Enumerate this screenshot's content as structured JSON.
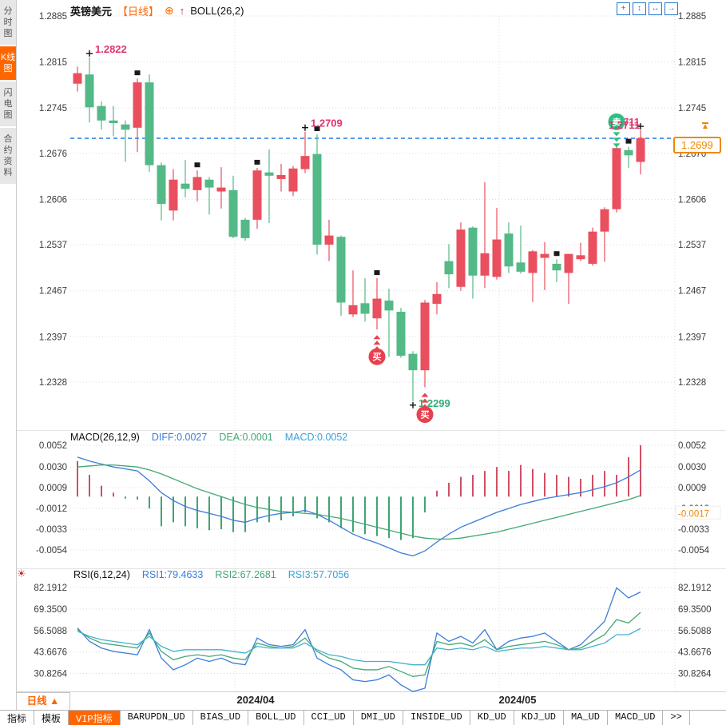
{
  "header": {
    "symbol": "英镑美元",
    "period": "【日线】",
    "boll": "BOLL(26,2)",
    "icons": {
      "add": "⊕",
      "trend_up": "↑"
    }
  },
  "sidebar": {
    "tabs": [
      {
        "label": "分时图",
        "active": false
      },
      {
        "label": "K线图",
        "active": true
      },
      {
        "label": "闪电图",
        "active": false
      },
      {
        "label": "合约资料",
        "active": false
      }
    ]
  },
  "top_icons": [
    {
      "name": "pan-tool-icon",
      "glyph": "+"
    },
    {
      "name": "fit-height-icon",
      "glyph": "↕"
    },
    {
      "name": "fit-width-icon",
      "glyph": "↔"
    },
    {
      "name": "shift-chart-icon",
      "glyph": "→"
    }
  ],
  "price_tag": {
    "value": "1.2699",
    "anchor": "▲"
  },
  "bottom": {
    "period_label": "日线 ▲",
    "x_labels": [
      {
        "text": "2024/04",
        "x": 320
      },
      {
        "text": "2024/05",
        "x": 648
      }
    ],
    "toolbar": [
      {
        "label": "指标",
        "active": false
      },
      {
        "label": "模板",
        "active": false
      },
      {
        "label": "VIP指标",
        "active": true
      },
      {
        "label": "BARUPDN_UD",
        "active": false
      },
      {
        "label": "BIAS_UD",
        "active": false
      },
      {
        "label": "BOLL_UD",
        "active": false
      },
      {
        "label": "CCI_UD",
        "active": false
      },
      {
        "label": "DMI_UD",
        "active": false
      },
      {
        "label": "INSIDE_UD",
        "active": false
      },
      {
        "label": "KD_UD",
        "active": false
      },
      {
        "label": "KDJ_UD",
        "active": false
      },
      {
        "label": "MA_UD",
        "active": false
      },
      {
        "label": "MACD_UD",
        "active": false
      },
      {
        "label": ">>",
        "active": false
      }
    ]
  },
  "colors": {
    "up": "#e94f5e",
    "down": "#53b987",
    "hist_up": "#cf5063",
    "hist_down": "#3fa573",
    "diff_line": "#3b7dd8",
    "dea_line": "#43a874",
    "cyan_line": "#45b0cf",
    "annotation_pink": "#e0356d",
    "annotation_green": "#2fae77",
    "signal_buy": "#e8404f",
    "signal_sell": "#2fbf83",
    "price_line": "#1f7fe8",
    "accent_orange": "#ff6600",
    "tag_orange": "#ef8800",
    "grid": "#d9d9d9",
    "axis_text": "#3a3a3a"
  },
  "chart_data": [
    {
      "type": "candlestick",
      "title": "英镑美元 日线",
      "indicator": "BOLL(26,2)",
      "y_axis": [
        "1.2885",
        "1.2815",
        "1.2745",
        "1.2676",
        "1.2606",
        "1.2537",
        "1.2467",
        "1.2397",
        "1.2328"
      ],
      "ylim": [
        1.2328,
        1.2885
      ],
      "x_labels": [
        "2024/04",
        "2024/05"
      ],
      "current_price": 1.2699,
      "current_price_label": "1.2699",
      "candles": [
        [
          1.2782,
          1.2808,
          1.277,
          1.2798
        ],
        [
          1.2796,
          1.2822,
          1.2723,
          1.2746
        ],
        [
          1.2748,
          1.2755,
          1.2712,
          1.2726
        ],
        [
          1.2726,
          1.2748,
          1.2702,
          1.2722
        ],
        [
          1.272,
          1.2726,
          1.2663,
          1.2712
        ],
        [
          1.2715,
          1.279,
          1.2678,
          1.2784
        ],
        [
          1.2784,
          1.2796,
          1.2648,
          1.2658
        ],
        [
          1.2658,
          1.2662,
          1.2574,
          1.2599
        ],
        [
          1.2589,
          1.2652,
          1.2574,
          1.2636
        ],
        [
          1.263,
          1.2666,
          1.2609,
          1.2622
        ],
        [
          1.262,
          1.265,
          1.2603,
          1.264
        ],
        [
          1.2636,
          1.264,
          1.2583,
          1.2624
        ],
        [
          1.2618,
          1.2655,
          1.2592,
          1.2624
        ],
        [
          1.262,
          1.2642,
          1.2547,
          1.2549
        ],
        [
          1.2575,
          1.2578,
          1.2543,
          1.2547
        ],
        [
          1.2575,
          1.2654,
          1.2561,
          1.265
        ],
        [
          1.2647,
          1.2682,
          1.257,
          1.2642
        ],
        [
          1.2637,
          1.266,
          1.2618,
          1.2643
        ],
        [
          1.2618,
          1.2657,
          1.2611,
          1.2653
        ],
        [
          1.2652,
          1.2709,
          1.2646,
          1.2672
        ],
        [
          1.2675,
          1.2705,
          1.2522,
          1.2537
        ],
        [
          1.2537,
          1.2575,
          1.2512,
          1.2551
        ],
        [
          1.2549,
          1.2551,
          1.2429,
          1.2449
        ],
        [
          1.2431,
          1.2498,
          1.2427,
          1.2445
        ],
        [
          1.2448,
          1.2486,
          1.242,
          1.2432
        ],
        [
          1.2425,
          1.2486,
          1.2408,
          1.2455
        ],
        [
          1.2452,
          1.247,
          1.2366,
          1.2437
        ],
        [
          1.2435,
          1.2441,
          1.2365,
          1.2368
        ],
        [
          1.2371,
          1.2375,
          1.2299,
          1.2346
        ],
        [
          1.2346,
          1.2453,
          1.232,
          1.2449
        ],
        [
          1.2447,
          1.248,
          1.2431,
          1.2462
        ],
        [
          1.2512,
          1.2538,
          1.2471,
          1.2492
        ],
        [
          1.2473,
          1.2571,
          1.2467,
          1.256
        ],
        [
          1.2563,
          1.2565,
          1.2455,
          1.249
        ],
        [
          1.249,
          1.2632,
          1.2471,
          1.2524
        ],
        [
          1.2488,
          1.2593,
          1.2484,
          1.2545
        ],
        [
          1.2554,
          1.2571,
          1.2494,
          1.2504
        ],
        [
          1.251,
          1.2566,
          1.2493,
          1.2496
        ],
        [
          1.2494,
          1.2529,
          1.245,
          1.2527
        ],
        [
          1.2517,
          1.2541,
          1.2468,
          1.2523
        ],
        [
          1.2508,
          1.2515,
          1.248,
          1.2498
        ],
        [
          1.2494,
          1.2523,
          1.2447,
          1.2523
        ],
        [
          1.2515,
          1.254,
          1.2512,
          1.2521
        ],
        [
          1.2508,
          1.2563,
          1.2505,
          1.2557
        ],
        [
          1.2557,
          1.2594,
          1.2511,
          1.2591
        ],
        [
          1.2591,
          1.269,
          1.2586,
          1.2684
        ],
        [
          1.2681,
          1.2686,
          1.2654,
          1.2673
        ],
        [
          1.2663,
          1.2711,
          1.2644,
          1.2699
        ]
      ],
      "markers": [
        {
          "i": 1,
          "type": "cross-high"
        },
        {
          "i": 5,
          "type": "square"
        },
        {
          "i": 10,
          "type": "square"
        },
        {
          "i": 15,
          "type": "square"
        },
        {
          "i": 19,
          "type": "cross-high"
        },
        {
          "i": 20,
          "type": "square"
        },
        {
          "i": 25,
          "type": "square"
        },
        {
          "i": 28,
          "type": "cross-low"
        },
        {
          "i": 40,
          "type": "square"
        },
        {
          "i": 46,
          "type": "square"
        },
        {
          "i": 47,
          "type": "cross-high"
        }
      ],
      "annotations": [
        {
          "text": "1.2822",
          "i": 1,
          "at": "high",
          "side": "right",
          "color": "#e0356d"
        },
        {
          "text": "1.2709",
          "i": 19,
          "at": "high",
          "side": "right",
          "color": "#e0356d"
        },
        {
          "text": "1.2711",
          "i": 47,
          "at": "high",
          "side": "left",
          "color": "#e0356d"
        },
        {
          "text": "1.2299",
          "i": 28,
          "at": "low",
          "side": "right",
          "color": "#2fae77"
        }
      ],
      "signals": [
        {
          "type": "buy",
          "label": "买",
          "i": 25
        },
        {
          "type": "buy",
          "label": "买",
          "i": 29
        },
        {
          "type": "sell",
          "label": "卖",
          "i": 45
        }
      ]
    },
    {
      "type": "bar",
      "legend": {
        "title": "MACD(26,12,9)",
        "diff": "DIFF:0.0027",
        "dea": "DEA:0.0001",
        "macd": "MACD:0.0052"
      },
      "y_axis": [
        "0.0052",
        "0.0030",
        "0.0009",
        "-0.0012",
        "-0.0033",
        "-0.0054"
      ],
      "ylim": [
        -0.0054,
        0.0052
      ],
      "right_value_label": "-0.0017",
      "right_value": -0.0017,
      "histogram": [
        0.0036,
        0.0022,
        0.0011,
        0.0004,
        -0.0002,
        -0.0003,
        -0.0012,
        -0.003,
        -0.0026,
        -0.003,
        -0.0032,
        -0.0034,
        -0.0033,
        -0.0036,
        -0.0036,
        -0.0026,
        -0.0026,
        -0.0024,
        -0.002,
        -0.0016,
        -0.0022,
        -0.0026,
        -0.0032,
        -0.0036,
        -0.0038,
        -0.004,
        -0.0042,
        -0.0044,
        -0.0042,
        -0.0016,
        0.0006,
        0.0014,
        0.002,
        0.0022,
        0.0026,
        0.003,
        0.0026,
        0.0032,
        0.0028,
        0.0024,
        0.0022,
        0.002,
        0.0018,
        0.0022,
        0.0026,
        0.0022,
        0.004,
        0.0052
      ],
      "diff": [
        0.004,
        0.0036,
        0.0033,
        0.003,
        0.0028,
        0.0026,
        0.0016,
        0.0004,
        -0.0004,
        -0.001,
        -0.0014,
        -0.0017,
        -0.002,
        -0.0024,
        -0.0026,
        -0.0022,
        -0.0019,
        -0.0017,
        -0.0016,
        -0.0014,
        -0.0018,
        -0.0024,
        -0.0031,
        -0.0038,
        -0.0043,
        -0.0047,
        -0.0052,
        -0.0057,
        -0.006,
        -0.0055,
        -0.0046,
        -0.0038,
        -0.0031,
        -0.0026,
        -0.0021,
        -0.0016,
        -0.0012,
        -0.0008,
        -0.0005,
        -0.0002,
        0.0,
        0.0002,
        0.0004,
        0.0007,
        0.001,
        0.0014,
        0.002,
        0.0027
      ],
      "dea": [
        0.003,
        0.0031,
        0.0032,
        0.0032,
        0.0031,
        0.003,
        0.0027,
        0.0023,
        0.0018,
        0.0013,
        0.0008,
        0.0004,
        0.0,
        -0.0004,
        -0.0008,
        -0.0011,
        -0.0013,
        -0.0015,
        -0.0016,
        -0.0017,
        -0.0018,
        -0.002,
        -0.0022,
        -0.0025,
        -0.0028,
        -0.0031,
        -0.0034,
        -0.0037,
        -0.004,
        -0.0042,
        -0.0043,
        -0.0043,
        -0.0042,
        -0.004,
        -0.0038,
        -0.0036,
        -0.0033,
        -0.003,
        -0.0027,
        -0.0024,
        -0.0021,
        -0.0018,
        -0.0015,
        -0.0012,
        -0.0009,
        -0.0006,
        -0.0003,
        0.0001
      ]
    },
    {
      "type": "line",
      "legend": {
        "title": "RSI(6,12,24)",
        "rsi1": "RSI1:79.4633",
        "rsi2": "RSI2:67.2681",
        "rsi3": "RSI3:57.7056"
      },
      "y_axis": [
        "82.1912",
        "69.3500",
        "56.5088",
        "43.6676",
        "30.8264"
      ],
      "ylim": [
        30.8264,
        82.1912
      ],
      "rsi1": [
        58,
        50,
        46,
        44,
        43,
        42,
        57,
        40,
        33,
        36,
        40,
        38,
        40,
        37,
        36,
        52,
        48,
        47,
        48,
        57,
        40,
        36,
        33,
        27,
        26,
        27,
        30,
        24,
        20,
        22,
        55,
        50,
        53,
        49,
        57,
        45,
        50,
        52,
        53,
        55,
        50,
        45,
        48,
        55,
        62,
        82,
        76,
        79.5
      ],
      "rsi2": [
        57,
        52,
        49,
        48,
        47,
        46,
        55,
        44,
        39,
        41,
        42,
        41,
        42,
        40,
        39,
        49,
        47,
        46,
        47,
        52,
        44,
        40,
        38,
        34,
        33,
        33,
        35,
        32,
        29,
        30,
        50,
        48,
        49,
        47,
        51,
        45,
        47,
        48,
        49,
        50,
        48,
        45,
        46,
        50,
        54,
        63,
        61,
        67.3
      ],
      "rsi3": [
        56,
        53,
        51,
        50,
        49,
        48,
        53,
        47,
        44,
        45,
        45,
        45,
        45,
        44,
        43,
        47,
        46,
        46,
        46,
        49,
        45,
        42,
        41,
        39,
        38,
        38,
        38,
        37,
        36,
        36,
        46,
        45,
        46,
        45,
        47,
        44,
        45,
        46,
        46,
        47,
        46,
        45,
        45,
        47,
        49,
        54,
        54,
        57.7
      ]
    }
  ]
}
